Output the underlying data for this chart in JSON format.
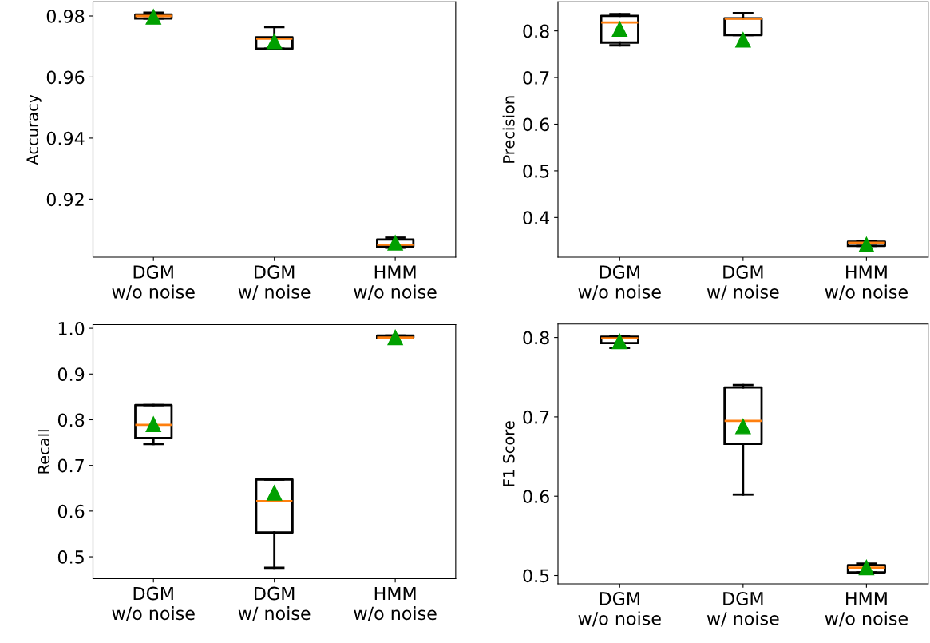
{
  "chart_data": [
    {
      "type": "box",
      "ylabel": "Accuracy",
      "categories": [
        "DGM\nw/o noise",
        "DGM\nw/ noise",
        "HMM\nw/o noise"
      ],
      "ylim": [
        0.901,
        0.9846
      ],
      "yticks": [
        0.92,
        0.94,
        0.96,
        0.98
      ],
      "grid": false,
      "boxes": [
        {
          "low": 0.9792,
          "q1": 0.9792,
          "median": 0.98,
          "q3": 0.9805,
          "high": 0.9811,
          "mean": 0.9797
        },
        {
          "low": 0.9693,
          "q1": 0.9693,
          "median": 0.9726,
          "q3": 0.973,
          "high": 0.9764,
          "mean": 0.9717
        },
        {
          "low": 0.9041,
          "q1": 0.9045,
          "median": 0.9051,
          "q3": 0.9068,
          "high": 0.9074,
          "mean": 0.9057
        }
      ]
    },
    {
      "type": "box",
      "ylabel": "Precision",
      "categories": [
        "DGM\nw/o noise",
        "DGM\nw/ noise",
        "HMM\nw/o noise"
      ],
      "ylim": [
        0.315,
        0.862
      ],
      "yticks": [
        0.4,
        0.5,
        0.6,
        0.7,
        0.8
      ],
      "grid": false,
      "boxes": [
        {
          "low": 0.769,
          "q1": 0.775,
          "median": 0.818,
          "q3": 0.832,
          "high": 0.836,
          "mean": 0.804
        },
        {
          "low": 0.791,
          "q1": 0.791,
          "median": 0.826,
          "q3": 0.827,
          "high": 0.838,
          "mean": 0.781
        },
        {
          "low": 0.339,
          "q1": 0.339,
          "median": 0.346,
          "q3": 0.348,
          "high": 0.35,
          "mean": 0.342
        }
      ]
    },
    {
      "type": "box",
      "ylabel": "Recall",
      "categories": [
        "DGM\nw/o noise",
        "DGM\nw/ noise",
        "HMM\nw/o noise"
      ],
      "ylim": [
        0.452,
        1.008
      ],
      "yticks": [
        0.5,
        0.6,
        0.7,
        0.8,
        0.9,
        {
          "value": 1,
          "label": "1.0"
        }
      ],
      "grid": false,
      "boxes": [
        {
          "low": 0.747,
          "q1": 0.76,
          "median": 0.789,
          "q3": 0.832,
          "high": 0.832,
          "mean": 0.79
        },
        {
          "low": 0.476,
          "q1": 0.553,
          "median": 0.622,
          "q3": 0.669,
          "high": 0.669,
          "mean": 0.64
        },
        {
          "low": 0.98,
          "q1": 0.98,
          "median": 0.98,
          "q3": 0.984,
          "high": 0.984,
          "mean": 0.98
        }
      ]
    },
    {
      "type": "box",
      "ylabel": "F1 Score",
      "categories": [
        "DGM\nw/o noise",
        "DGM\nw/ noise",
        "HMM\nw/o noise"
      ],
      "ylim": [
        0.4895,
        0.817
      ],
      "yticks": [
        0.5,
        0.6,
        0.7,
        0.8
      ],
      "grid": false,
      "boxes": [
        {
          "low": 0.787,
          "q1": 0.793,
          "median": 0.799,
          "q3": 0.801,
          "high": 0.802,
          "mean": 0.795
        },
        {
          "low": 0.602,
          "q1": 0.666,
          "median": 0.695,
          "q3": 0.737,
          "high": 0.74,
          "mean": 0.688
        },
        {
          "low": 0.504,
          "q1": 0.504,
          "median": 0.51,
          "q3": 0.513,
          "high": 0.515,
          "mean": 0.51
        }
      ]
    }
  ]
}
